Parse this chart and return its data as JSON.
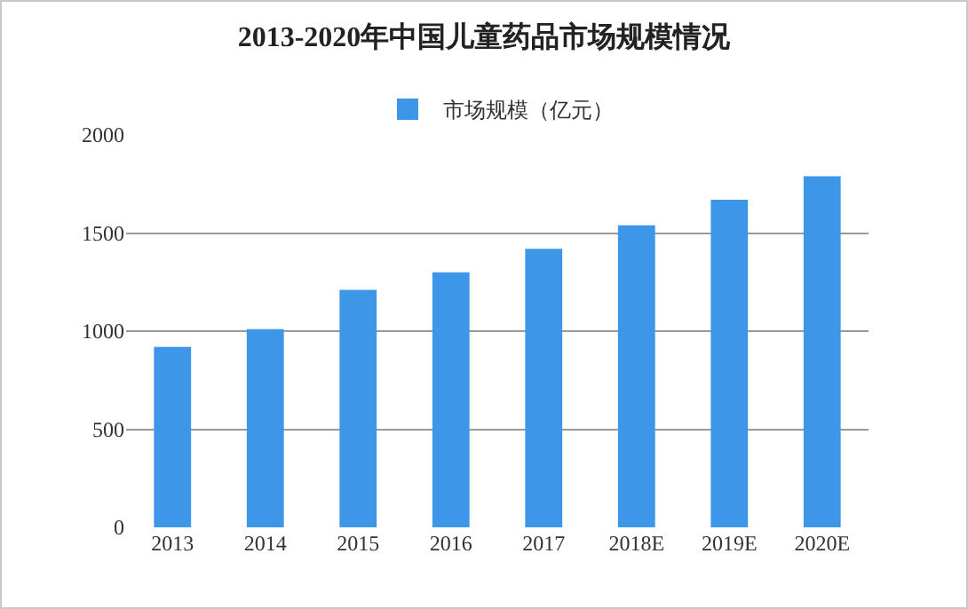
{
  "chart_data": {
    "type": "bar",
    "title": "2013-2020年中国儿童药品市场规模情况",
    "categories": [
      "2013",
      "2014",
      "2015",
      "2016",
      "2017",
      "2018E",
      "2019E",
      "2020E"
    ],
    "series": [
      {
        "name": "市场规模（亿元）",
        "color": "#3d96e8",
        "values": [
          920,
          1010,
          1210,
          1300,
          1420,
          1540,
          1670,
          1790
        ]
      }
    ],
    "ylim": [
      0,
      2000
    ],
    "yticks": [
      0,
      500,
      1000,
      1500,
      2000
    ],
    "grid": "y",
    "legend": "top"
  }
}
